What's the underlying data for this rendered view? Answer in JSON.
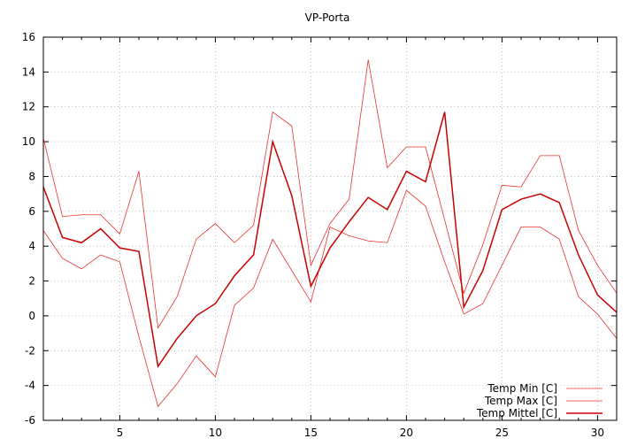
{
  "chart_data": {
    "type": "line",
    "title": "VP-Porta",
    "xlabel": "",
    "ylabel": "",
    "xlim": [
      1,
      31
    ],
    "ylim": [
      -6,
      16
    ],
    "x_ticks": [
      5,
      10,
      15,
      20,
      25,
      30
    ],
    "y_ticks": [
      -6,
      -4,
      -2,
      0,
      2,
      4,
      6,
      8,
      10,
      12,
      14,
      16
    ],
    "grid": true,
    "legend_position": "bottom-right",
    "x": [
      1,
      2,
      3,
      4,
      5,
      6,
      7,
      8,
      9,
      10,
      11,
      12,
      13,
      14,
      15,
      16,
      17,
      18,
      19,
      20,
      21,
      22,
      23,
      24,
      25,
      26,
      27,
      28,
      29,
      30,
      31
    ],
    "series": [
      {
        "name": "Temp Min [C]",
        "color": "#e8302a",
        "width": 0.8,
        "values": [
          4.9,
          3.3,
          2.7,
          3.5,
          3.1,
          -1.2,
          -5.2,
          -3.9,
          -2.3,
          -3.5,
          0.6,
          1.6,
          4.4,
          2.6,
          0.8,
          5.1,
          4.6,
          4.3,
          4.2,
          7.2,
          6.3,
          3.1,
          0.1,
          0.7,
          2.9,
          5.1,
          5.1,
          4.4,
          1.1,
          0.1,
          -1.3
        ]
      },
      {
        "name": "Temp Max [C]",
        "color": "#e8302a",
        "width": 0.8,
        "values": [
          10.2,
          5.7,
          5.8,
          5.8,
          4.7,
          8.3,
          -0.7,
          1.1,
          4.4,
          5.3,
          4.2,
          5.2,
          11.7,
          10.9,
          2.9,
          5.3,
          6.7,
          14.7,
          8.5,
          9.7,
          9.7,
          5.5,
          1.3,
          4.1,
          7.5,
          7.4,
          9.2,
          9.2,
          4.9,
          2.9,
          1.3
        ]
      },
      {
        "name": "Temp Mittel [C]",
        "color": "#c80000",
        "width": 1.5,
        "values": [
          7.4,
          4.5,
          4.2,
          5.0,
          3.9,
          3.7,
          -2.9,
          -1.3,
          0.0,
          0.7,
          2.3,
          3.5,
          10.0,
          6.9,
          1.7,
          3.9,
          5.4,
          6.8,
          6.1,
          8.3,
          7.7,
          11.7,
          0.5,
          2.6,
          6.1,
          6.7,
          7.0,
          6.5,
          3.5,
          1.2,
          0.2
        ]
      }
    ]
  }
}
